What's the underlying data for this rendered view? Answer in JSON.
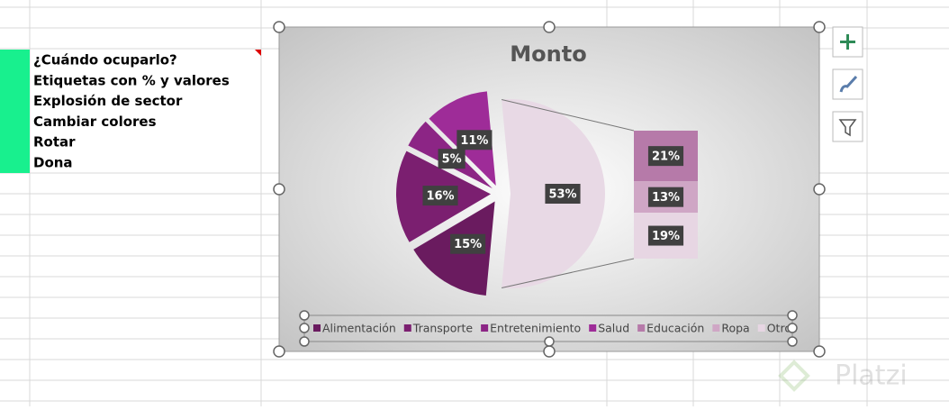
{
  "sheet": {
    "rows": [
      "¿Cuándo ocuparlo?",
      "Etiquetas con % y valores",
      "Explosión de sector",
      "Cambiar colores",
      "Rotar",
      "Dona"
    ]
  },
  "chart_data": {
    "type": "pie-of-pie",
    "title": "Monto",
    "categories": [
      "Alimentación",
      "Transporte",
      "Entretenimiento",
      "Salud",
      "Educación",
      "Ropa",
      "Otros"
    ],
    "values": [
      15,
      16,
      5,
      11,
      21,
      13,
      19
    ],
    "value_labels": [
      "15%",
      "16%",
      "5%",
      "11%",
      "21%",
      "13%",
      "19%"
    ],
    "colors": [
      "#6a1b5f",
      "#7b1f70",
      "#8c2585",
      "#9e2c98",
      "#b67aa9",
      "#cfa6c5",
      "#e7d6e3"
    ],
    "secondary_total": {
      "value": 53,
      "label": "53%"
    }
  },
  "watermark": "Platzi"
}
